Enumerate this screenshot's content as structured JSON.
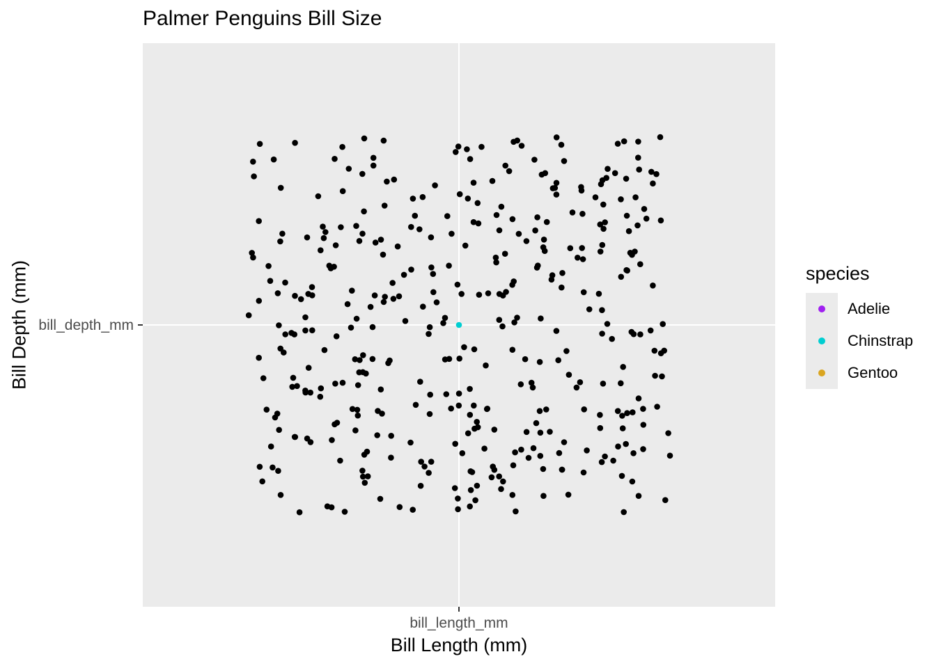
{
  "chart_data": {
    "type": "scatter",
    "title": "Palmer Penguins Bill Size",
    "xlabel": "Bill Length (mm)",
    "ylabel": "Bill Depth (mm)",
    "x_categories": [
      "bill_length_mm"
    ],
    "y_categories": [
      "bill_depth_mm"
    ],
    "grid": true,
    "legend": {
      "title": "species",
      "placement": "right",
      "entries": [
        {
          "name": "Adelie",
          "color": "#a020f0"
        },
        {
          "name": "Chinstrap",
          "color": "#00ced1"
        },
        {
          "name": "Gentoo",
          "color": "#daa520"
        }
      ]
    },
    "colors": {
      "panel_background": "#ebebeb",
      "grid": "#ffffff",
      "jittered_points": "#000000"
    },
    "series": [
      {
        "x": "bill_length_mm",
        "y": "bill_depth_mm",
        "color_key": "Chinstrap",
        "n_points": 1
      },
      {
        "x": "bill_length_mm",
        "y": "bill_depth_mm",
        "color": "#000000",
        "n_points": 400,
        "position": "jitter"
      }
    ]
  }
}
